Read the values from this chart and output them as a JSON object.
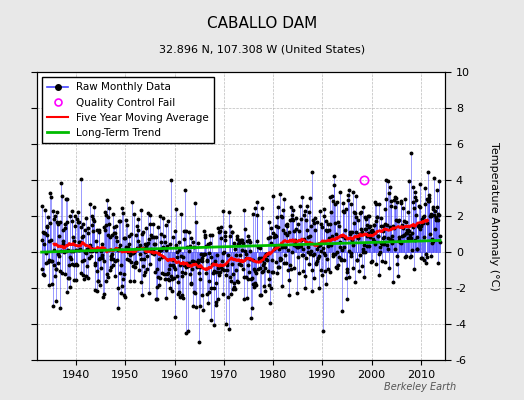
{
  "title": "CABALLO DAM",
  "subtitle": "32.896 N, 107.308 W (United States)",
  "ylabel": "Temperature Anomaly (°C)",
  "watermark": "Berkeley Earth",
  "ylim": [
    -6,
    10
  ],
  "yticks": [
    -6,
    -4,
    -2,
    0,
    2,
    4,
    6,
    8,
    10
  ],
  "year_start": 1933,
  "year_end": 2013,
  "xlim_start": 1932,
  "xlim_end": 2015,
  "xticks": [
    1940,
    1950,
    1960,
    1970,
    1980,
    1990,
    2000,
    2010
  ],
  "bg_color": "#e8e8e8",
  "plot_bg_color": "#ffffff",
  "raw_line_color": "#4444ff",
  "raw_dot_color": "#000000",
  "qc_fail_color": "#ff00ff",
  "moving_avg_color": "#ff0000",
  "trend_color": "#00bb00",
  "grid_color": "#aaaaaa",
  "title_fontsize": 11,
  "subtitle_fontsize": 8,
  "tick_fontsize": 8,
  "legend_fontsize": 7.5,
  "seed": 7
}
